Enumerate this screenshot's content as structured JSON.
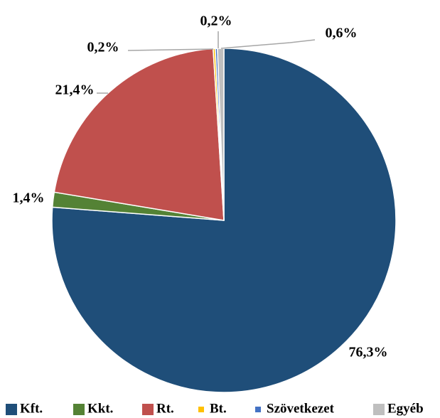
{
  "chart_data": {
    "type": "pie",
    "categories": [
      "Kft.",
      "Kkt.",
      "Rt.",
      "Bt.",
      "Szövetkezet",
      "Egyéb"
    ],
    "values": [
      76.3,
      1.4,
      21.4,
      0.2,
      0.2,
      0.6
    ],
    "value_labels": [
      "76,3%",
      "1,4%",
      "21,4%",
      "0,2%",
      "0,2%",
      "0,6%"
    ],
    "colors": [
      "#1f4e79",
      "#548235",
      "#c0504d",
      "#ffc000",
      "#4472c4",
      "#bfbfbf"
    ],
    "legend": "bottom"
  }
}
